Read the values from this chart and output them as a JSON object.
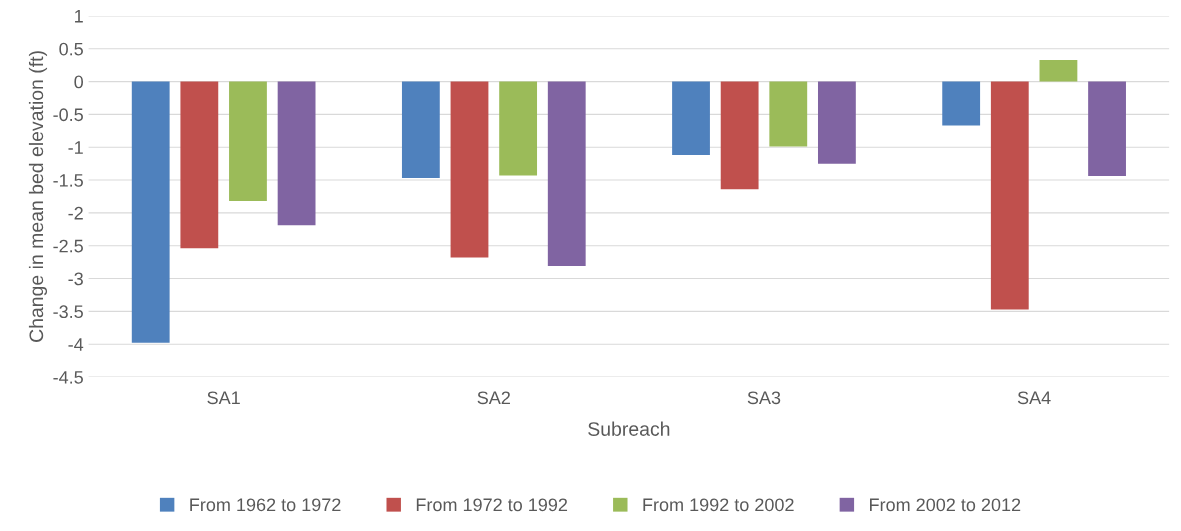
{
  "chart_data": {
    "type": "bar",
    "xlabel": "Subreach",
    "ylabel": "Change in mean bed elevation (ft)",
    "categories": [
      "SA1",
      "SA2",
      "SA3",
      "SA4"
    ],
    "series": [
      {
        "name": "From 1962 to 1972",
        "color": "#4f81bd",
        "values": [
          -3.98,
          -1.47,
          -1.12,
          -0.67
        ]
      },
      {
        "name": "From 1972 to 1992",
        "color": "#c0504d",
        "values": [
          -2.54,
          -2.68,
          -1.64,
          -3.47
        ]
      },
      {
        "name": "From 1992 to 2002",
        "color": "#9bbb59",
        "values": [
          -1.82,
          -1.43,
          -0.99,
          0.33
        ]
      },
      {
        "name": "From 2002 to 2012",
        "color": "#8064a2",
        "values": [
          -2.19,
          -2.81,
          -1.25,
          -1.44
        ]
      }
    ],
    "ylim": [
      -4.5,
      1
    ],
    "yticks": [
      1,
      0.5,
      0,
      -0.5,
      -1,
      -1.5,
      -2,
      -2.5,
      -3,
      -3.5,
      -4,
      -4.5
    ],
    "grid": "y",
    "legend": "bottom"
  }
}
